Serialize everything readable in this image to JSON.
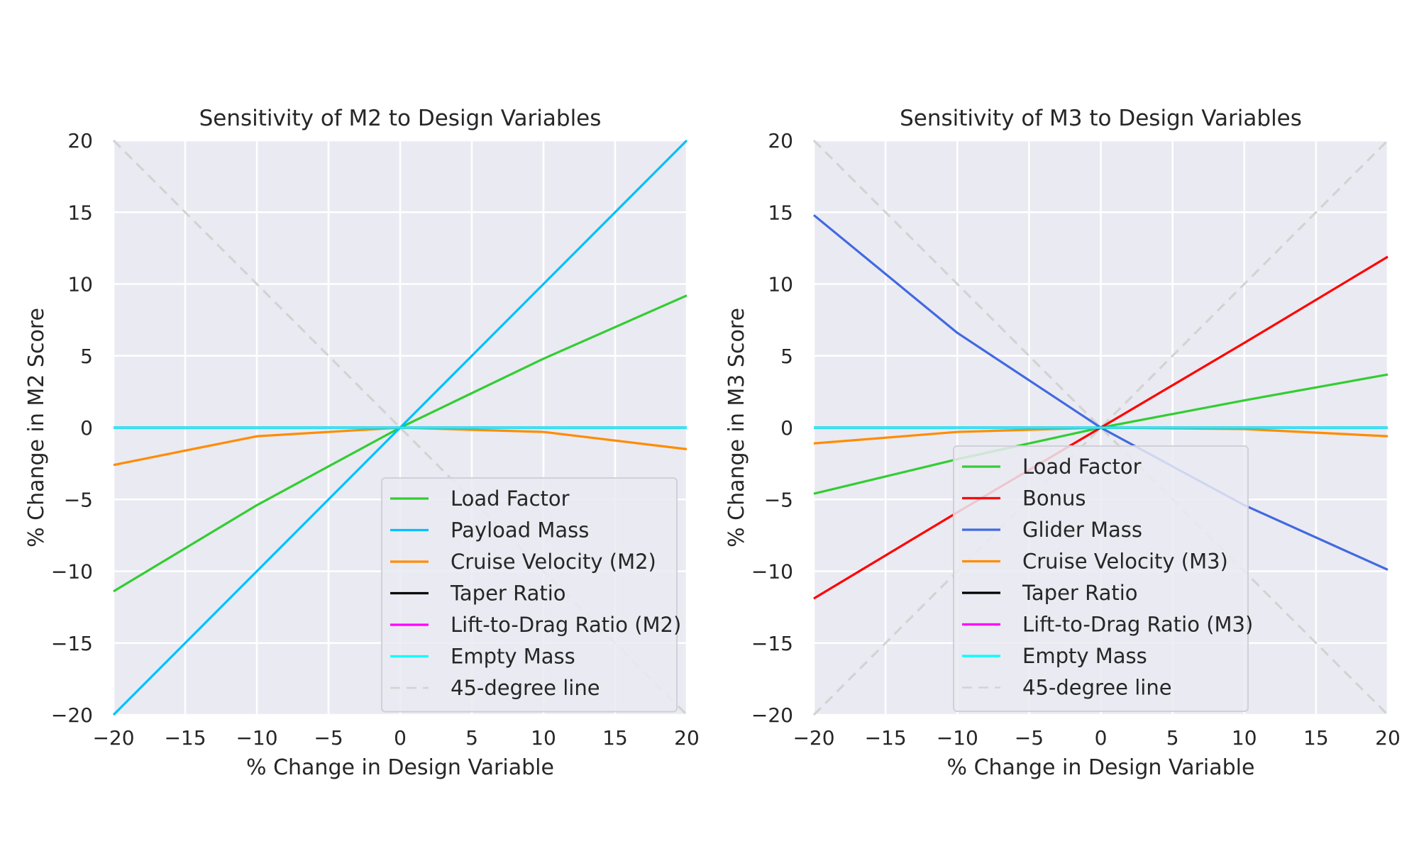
{
  "chart_data": [
    {
      "type": "line",
      "title": "Sensitivity of M2 to Design Variables",
      "xlabel": "% Change in Design Variable",
      "ylabel": "% Change in M2 Score",
      "xlim": [
        -20,
        20
      ],
      "ylim": [
        -20,
        20
      ],
      "xticks": [
        "−20",
        "−15",
        "−10",
        "−5",
        "0",
        "5",
        "10",
        "15",
        "20"
      ],
      "yticks": [
        "20",
        "15",
        "10",
        "5",
        "0",
        "−5",
        "−10",
        "−15",
        "−20"
      ],
      "grid": true,
      "legend_position": "lower-right",
      "x": [
        -20,
        -10,
        0,
        10,
        20
      ],
      "series": [
        {
          "name": "45-degree line",
          "color": "#d3d3d3",
          "dashed": true,
          "values": [
            20,
            10,
            0,
            -10,
            -20
          ]
        },
        {
          "name": "Load Factor",
          "color": "#32cd32",
          "values": [
            -11.4,
            -5.4,
            0,
            4.8,
            9.2
          ]
        },
        {
          "name": "Payload Mass",
          "color": "#00bfff",
          "values": [
            -20,
            -10,
            0,
            10,
            20
          ]
        },
        {
          "name": "Cruise Velocity (M2)",
          "color": "#ff8c00",
          "values": [
            -2.6,
            -0.6,
            0,
            -0.3,
            -1.5
          ]
        },
        {
          "name": "Taper Ratio",
          "color": "#000000",
          "values": [
            0,
            0,
            0,
            0,
            0
          ]
        },
        {
          "name": "Lift-to-Drag Ratio (M2)",
          "color": "#ff00ff",
          "values": [
            0,
            0,
            0,
            0,
            0
          ]
        },
        {
          "name": "Empty Mass",
          "color": "#00ffff",
          "values": [
            0,
            0,
            0,
            0,
            0
          ]
        }
      ],
      "legend_order": [
        "Load Factor",
        "Payload Mass",
        "Cruise Velocity (M2)",
        "Taper Ratio",
        "Lift-to-Drag Ratio (M2)",
        "Empty Mass",
        "45-degree line"
      ]
    },
    {
      "type": "line",
      "title": "Sensitivity of M3 to Design Variables",
      "xlabel": "% Change in Design Variable",
      "ylabel": "% Change in M3 Score",
      "xlim": [
        -20,
        20
      ],
      "ylim": [
        -20,
        20
      ],
      "xticks": [
        "−20",
        "−15",
        "−10",
        "−5",
        "0",
        "5",
        "10",
        "15",
        "20"
      ],
      "yticks": [
        "20",
        "15",
        "10",
        "5",
        "0",
        "−5",
        "−10",
        "−15",
        "−20"
      ],
      "grid": true,
      "legend_position": "lower-center",
      "x": [
        -20,
        -10,
        0,
        10,
        20
      ],
      "series": [
        {
          "name": "45-degree line",
          "color": "#d3d3d3",
          "dashed": true,
          "values": [
            -20,
            -10,
            0,
            10,
            20
          ]
        },
        {
          "name": "45-degree line",
          "color": "#d3d3d3",
          "dashed": true,
          "values": [
            20,
            10,
            0,
            -10,
            -20
          ]
        },
        {
          "name": "Load Factor",
          "color": "#32cd32",
          "values": [
            -4.6,
            -2.2,
            0,
            1.9,
            3.7
          ]
        },
        {
          "name": "Bonus",
          "color": "#ff0000",
          "values": [
            -11.9,
            -5.9,
            0,
            5.9,
            11.9
          ]
        },
        {
          "name": "Glider Mass",
          "color": "#4169e1",
          "values": [
            14.8,
            6.6,
            0,
            -5.4,
            -9.9
          ]
        },
        {
          "name": "Cruise Velocity (M3)",
          "color": "#ff8c00",
          "values": [
            -1.1,
            -0.3,
            0,
            -0.1,
            -0.6
          ]
        },
        {
          "name": "Taper Ratio",
          "color": "#000000",
          "values": [
            0,
            0,
            0,
            0,
            0
          ]
        },
        {
          "name": "Lift-to-Drag Ratio (M3)",
          "color": "#ff00ff",
          "values": [
            0,
            0,
            0,
            0,
            0
          ]
        },
        {
          "name": "Empty Mass",
          "color": "#00ffff",
          "values": [
            0,
            0,
            0,
            0,
            0
          ]
        }
      ],
      "legend_order": [
        "Load Factor",
        "Bonus",
        "Glider Mass",
        "Cruise Velocity (M3)",
        "Taper Ratio",
        "Lift-to-Drag Ratio (M3)",
        "Empty Mass",
        "45-degree line"
      ]
    }
  ]
}
